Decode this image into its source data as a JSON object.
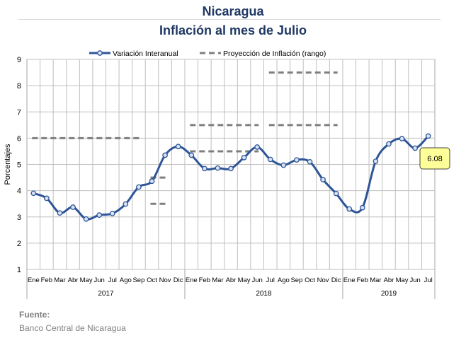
{
  "header": {
    "title": "Nicaragua",
    "subtitle": "Inflación al mes de Julio"
  },
  "footer": {
    "label": "Fuente:",
    "source": "Banco Central de Nicaragua"
  },
  "colors": {
    "title": "#1f3864",
    "series": "#2e5597",
    "marker_fill": "#dae3f3",
    "projection": "#7f7f7f",
    "grid": "#bfbfbf",
    "callout_fill": "#ffff99"
  },
  "chart_data": {
    "type": "line",
    "ylabel": "Porcentajes",
    "ylim": [
      1,
      9
    ],
    "yticks": [
      1,
      2,
      3,
      4,
      5,
      6,
      7,
      8,
      9
    ],
    "grid": true,
    "legend_position": "top",
    "months": [
      "Ene",
      "Feb",
      "Mar",
      "Abr",
      "May",
      "Jun",
      "Jul",
      "Ago",
      "Sep",
      "Oct",
      "Nov",
      "Dic",
      "Ene",
      "Feb",
      "Mar",
      "Abr",
      "May",
      "Jun",
      "Jul",
      "Ago",
      "Sep",
      "Oct",
      "Nov",
      "Dic",
      "Ene",
      "Feb",
      "Mar",
      "Abr",
      "May",
      "Jun",
      "Jul"
    ],
    "years": [
      {
        "label": "2017",
        "months": 12
      },
      {
        "label": "2018",
        "months": 12
      },
      {
        "label": "2019",
        "months": 7
      }
    ],
    "series": [
      {
        "name": "Variación Interanual",
        "values": [
          3.9,
          3.71,
          3.15,
          3.37,
          2.92,
          3.07,
          3.13,
          3.49,
          4.14,
          4.36,
          5.35,
          5.68,
          5.35,
          4.84,
          4.86,
          4.84,
          5.26,
          5.66,
          5.19,
          4.97,
          5.17,
          5.1,
          4.42,
          3.89,
          3.3,
          3.35,
          5.12,
          5.78,
          5.98,
          5.62,
          6.08
        ]
      }
    ],
    "projection": {
      "name": "Proyección de Inflación (rango)",
      "segments": [
        {
          "from": 0,
          "to": 8,
          "value": 6.0
        },
        {
          "from": 9,
          "to": 10,
          "value": 4.5
        },
        {
          "from": 9,
          "to": 10,
          "value": 3.5
        },
        {
          "from": 12,
          "to": 17,
          "value": 6.5
        },
        {
          "from": 12,
          "to": 17,
          "value": 5.5
        },
        {
          "from": 18,
          "to": 23,
          "value": 8.5
        },
        {
          "from": 18,
          "to": 23,
          "value": 6.5
        }
      ]
    },
    "callout": {
      "index": 30,
      "text": "6.08"
    }
  }
}
